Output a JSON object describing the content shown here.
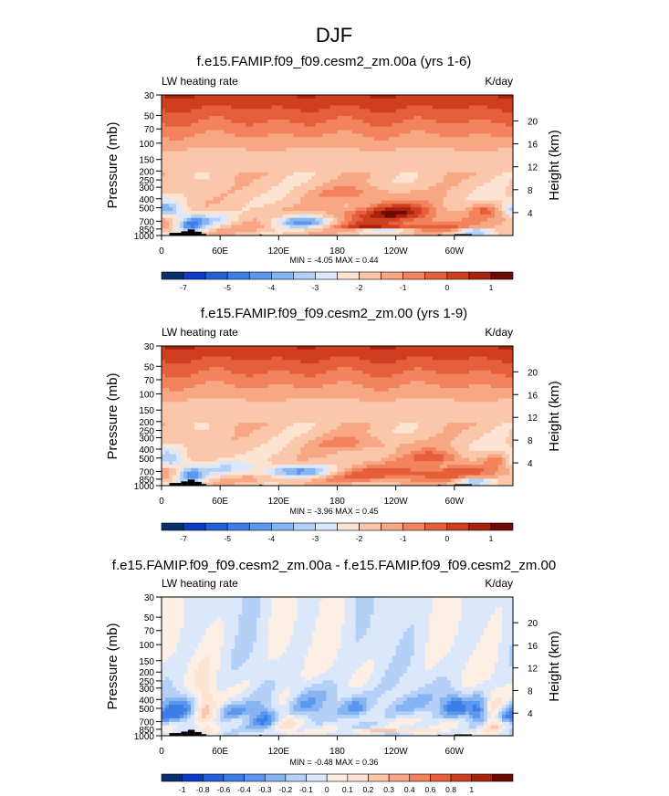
{
  "page_title": "DJF",
  "colors": {
    "panel_palette": [
      "#08306b",
      "#0c3bc4",
      "#2160d8",
      "#3c7de6",
      "#5b97ee",
      "#86b4f3",
      "#b5d0f7",
      "#dbe8fb",
      "#fce3d2",
      "#fbc7aa",
      "#f8a784",
      "#f2835d",
      "#e55f3a",
      "#cf3f1f",
      "#a8220e",
      "#6e0a03"
    ],
    "diff_palette": [
      "#08306b",
      "#0c3bc4",
      "#2160d8",
      "#3c7de6",
      "#5b97ee",
      "#86b4f3",
      "#b5d0f7",
      "#dbe8fb",
      "#fdeee3",
      "#fce3d2",
      "#fbc7aa",
      "#f8a784",
      "#f2835d",
      "#e55f3a",
      "#cf3f1f",
      "#a8220e",
      "#6e0a03"
    ],
    "topo": "#000000"
  },
  "chart_data": [
    {
      "type": "contour",
      "title": "f.e15.FAMIP.f09_f09.cesm2_zm.00a (yrs 1-6)",
      "left_label": "LW heating rate",
      "right_label": "K/day",
      "ylabel": "Pressure (mb)",
      "ylabel_right": "Height (km)",
      "x_ticks": [
        "0",
        "60E",
        "120E",
        "180",
        "120W",
        "60W"
      ],
      "x_tick_values": [
        0,
        60,
        120,
        180,
        240,
        300
      ],
      "xlim": [
        0,
        360
      ],
      "y_ticks": [
        "30",
        "50",
        "70",
        "100",
        "150",
        "200",
        "250",
        "300",
        "400",
        "500",
        "700",
        "850",
        "1000"
      ],
      "y_tick_values": [
        30,
        50,
        70,
        100,
        150,
        200,
        250,
        300,
        400,
        500,
        700,
        850,
        1000
      ],
      "ylim": [
        30,
        1000
      ],
      "height_ticks": [
        "20",
        "16",
        "12",
        "8",
        "4"
      ],
      "height_tick_values": [
        20,
        16,
        12,
        8,
        4
      ],
      "min_label": "MIN =  -4.05  MAX =   0.44",
      "colorbar_labels": [
        "-7",
        "-5",
        "-4",
        "-3",
        "-2",
        "-1",
        "0",
        "1"
      ],
      "levels": [
        -7,
        -6,
        -5,
        -4.5,
        -4,
        -3.5,
        -3,
        -2.5,
        -2,
        -1.5,
        -1,
        -0.5,
        0,
        0.5,
        1
      ],
      "features": [
        {
          "x": 5,
          "p": 530,
          "sx": 12,
          "sp": 70,
          "a": -2.2
        },
        {
          "x": 143,
          "p": 710,
          "sx": 22,
          "sp": 80,
          "a": -3.0
        },
        {
          "x": 30,
          "p": 780,
          "sx": 10,
          "sp": 110,
          "a": -2.4
        },
        {
          "x": 45,
          "p": 680,
          "sx": 20,
          "sp": 90,
          "a": -1.6
        },
        {
          "x": 240,
          "p": 530,
          "sx": 25,
          "sp": 80,
          "a": 1.6
        },
        {
          "x": 225,
          "p": 625,
          "sx": 45,
          "sp": 90,
          "a": 1.3
        },
        {
          "x": 220,
          "p": 790,
          "sx": 30,
          "sp": 40,
          "a": 1.8
        },
        {
          "x": 330,
          "p": 530,
          "sx": 12,
          "sp": 50,
          "a": 1.2
        },
        {
          "x": 320,
          "p": 900,
          "sx": 12,
          "sp": 60,
          "a": -2.0
        },
        {
          "x": 228,
          "p": 895,
          "sx": 18,
          "sp": 35,
          "a": -1.5
        },
        {
          "x": 290,
          "p": 830,
          "sx": 35,
          "sp": 50,
          "a": 0.9
        },
        {
          "x": 200,
          "p": 350,
          "sx": 40,
          "sp": 50,
          "a": 0.9
        },
        {
          "x": 20,
          "p": 300,
          "sx": 15,
          "sp": 40,
          "a": 0.7
        }
      ],
      "topo_blocks": [
        [
          8,
          20,
          935
        ],
        [
          20,
          27,
          900
        ],
        [
          27,
          34,
          860
        ],
        [
          34,
          41,
          910
        ],
        [
          41,
          46,
          960
        ],
        [
          100,
          103,
          975
        ],
        [
          283,
          286,
          975
        ],
        [
          286,
          300,
          985
        ],
        [
          300,
          318,
          965
        ]
      ]
    },
    {
      "type": "contour",
      "title": "f.e15.FAMIP.f09_f09.cesm2_zm.00 (yrs 1-9)",
      "left_label": "LW heating rate",
      "right_label": "K/day",
      "ylabel": "Pressure (mb)",
      "ylabel_right": "Height (km)",
      "x_ticks": [
        "0",
        "60E",
        "120E",
        "180",
        "120W",
        "60W"
      ],
      "x_tick_values": [
        0,
        60,
        120,
        180,
        240,
        300
      ],
      "xlim": [
        0,
        360
      ],
      "y_ticks": [
        "30",
        "50",
        "70",
        "100",
        "150",
        "200",
        "250",
        "300",
        "400",
        "500",
        "700",
        "850",
        "1000"
      ],
      "y_tick_values": [
        30,
        50,
        70,
        100,
        150,
        200,
        250,
        300,
        400,
        500,
        700,
        850,
        1000
      ],
      "ylim": [
        30,
        1000
      ],
      "height_ticks": [
        "20",
        "16",
        "12",
        "8",
        "4"
      ],
      "height_tick_values": [
        20,
        16,
        12,
        8,
        4
      ],
      "min_label": "MIN =  -3.96  MAX =   0.45",
      "colorbar_labels": [
        "-7",
        "-5",
        "-4",
        "-3",
        "-2",
        "-1",
        "0",
        "1"
      ],
      "levels": [
        -7,
        -6,
        -5,
        -4.5,
        -4,
        -3.5,
        -3,
        -2.5,
        -2,
        -1.5,
        -1,
        -0.5,
        0,
        0.5,
        1
      ],
      "features": [
        {
          "x": 5,
          "p": 520,
          "sx": 12,
          "sp": 70,
          "a": -2.2
        },
        {
          "x": 140,
          "p": 700,
          "sx": 25,
          "sp": 80,
          "a": -3.0
        },
        {
          "x": 30,
          "p": 790,
          "sx": 10,
          "sp": 110,
          "a": -2.4
        },
        {
          "x": 60,
          "p": 660,
          "sx": 30,
          "sp": 100,
          "a": -1.4
        },
        {
          "x": 280,
          "p": 490,
          "sx": 20,
          "sp": 60,
          "a": 1.5
        },
        {
          "x": 350,
          "p": 520,
          "sx": 12,
          "sp": 50,
          "a": 1.2
        },
        {
          "x": 230,
          "p": 780,
          "sx": 60,
          "sp": 110,
          "a": 1.0
        },
        {
          "x": 320,
          "p": 895,
          "sx": 12,
          "sp": 60,
          "a": -2.0
        },
        {
          "x": 290,
          "p": 700,
          "sx": 40,
          "sp": 80,
          "a": 0.7
        },
        {
          "x": 200,
          "p": 350,
          "sx": 40,
          "sp": 50,
          "a": 0.9
        },
        {
          "x": 20,
          "p": 300,
          "sx": 15,
          "sp": 40,
          "a": 0.7
        }
      ],
      "topo_blocks": [
        [
          8,
          20,
          935
        ],
        [
          20,
          27,
          900
        ],
        [
          27,
          34,
          860
        ],
        [
          34,
          41,
          910
        ],
        [
          41,
          46,
          960
        ],
        [
          100,
          103,
          975
        ],
        [
          283,
          286,
          975
        ],
        [
          286,
          300,
          985
        ],
        [
          300,
          318,
          965
        ]
      ]
    },
    {
      "type": "contour",
      "title": "f.e15.FAMIP.f09_f09.cesm2_zm.00a - f.e15.FAMIP.f09_f09.cesm2_zm.00",
      "left_label": "LW heating rate",
      "right_label": "K/day",
      "ylabel": "Pressure (mb)",
      "ylabel_right": "Height (km)",
      "x_ticks": [
        "0",
        "60E",
        "120E",
        "180",
        "120W",
        "60W"
      ],
      "x_tick_values": [
        0,
        60,
        120,
        180,
        240,
        300
      ],
      "xlim": [
        0,
        360
      ],
      "y_ticks": [
        "30",
        "50",
        "70",
        "100",
        "150",
        "200",
        "250",
        "300",
        "400",
        "500",
        "700",
        "850",
        "1000"
      ],
      "y_tick_values": [
        30,
        50,
        70,
        100,
        150,
        200,
        250,
        300,
        400,
        500,
        700,
        850,
        1000
      ],
      "ylim": [
        30,
        1000
      ],
      "height_ticks": [
        "20",
        "16",
        "12",
        "8",
        "4"
      ],
      "height_tick_values": [
        20,
        16,
        12,
        8,
        4
      ],
      "min_label": "MIN =  -0.48  MAX =   0.36",
      "colorbar_labels": [
        "-1",
        "-0.8",
        "-0.6",
        "-0.4",
        "-0.3",
        "-0.2",
        "-0.1",
        "0",
        "0.1",
        "0.2",
        "0.3",
        "0.4",
        "0.6",
        "0.8",
        "1"
      ],
      "levels": [
        -1,
        -0.8,
        -0.6,
        -0.4,
        -0.3,
        -0.2,
        -0.1,
        0,
        0.1,
        0.2,
        0.3,
        0.4,
        0.6,
        0.8,
        1
      ],
      "features": [
        {
          "x": 15,
          "p": 520,
          "sx": 12,
          "sp": 120,
          "a": -0.42
        },
        {
          "x": 75,
          "p": 530,
          "sx": 12,
          "sp": 90,
          "a": -0.3
        },
        {
          "x": 105,
          "p": 650,
          "sx": 12,
          "sp": 150,
          "a": -0.45
        },
        {
          "x": 150,
          "p": 510,
          "sx": 18,
          "sp": 90,
          "a": -0.22
        },
        {
          "x": 200,
          "p": 500,
          "sx": 10,
          "sp": 80,
          "a": -0.28
        },
        {
          "x": 250,
          "p": 480,
          "sx": 25,
          "sp": 100,
          "a": -0.2
        },
        {
          "x": 300,
          "p": 470,
          "sx": 10,
          "sp": 100,
          "a": -0.36
        },
        {
          "x": 325,
          "p": 540,
          "sx": 8,
          "sp": 120,
          "a": -0.4
        },
        {
          "x": 355,
          "p": 620,
          "sx": 8,
          "sp": 80,
          "a": -0.35
        },
        {
          "x": 45,
          "p": 600,
          "sx": 8,
          "sp": 250,
          "a": 0.28
        },
        {
          "x": 125,
          "p": 600,
          "sx": 10,
          "sp": 300,
          "a": 0.18
        },
        {
          "x": 230,
          "p": 880,
          "sx": 25,
          "sp": 30,
          "a": 0.3
        },
        {
          "x": 340,
          "p": 700,
          "sx": 8,
          "sp": 200,
          "a": 0.3
        },
        {
          "x": 170,
          "p": 350,
          "sx": 30,
          "sp": 80,
          "a": -0.12
        }
      ],
      "topo_blocks": [
        [
          8,
          20,
          935
        ],
        [
          20,
          27,
          900
        ],
        [
          27,
          34,
          860
        ],
        [
          34,
          41,
          910
        ],
        [
          41,
          46,
          960
        ],
        [
          100,
          103,
          975
        ],
        [
          283,
          286,
          975
        ],
        [
          286,
          300,
          985
        ],
        [
          300,
          318,
          965
        ]
      ]
    }
  ]
}
